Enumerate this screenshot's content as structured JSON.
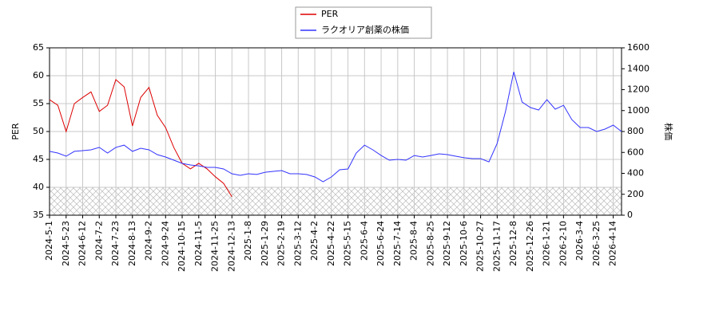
{
  "chart_data": {
    "type": "line",
    "categories": [
      "2024-5-1",
      null,
      "2024-5-23",
      null,
      "2024-6-12",
      null,
      "2024-7-2",
      null,
      "2024-7-23",
      null,
      "2024-8-13",
      null,
      "2024-9-2",
      null,
      "2024-9-24",
      null,
      "2024-10-15",
      null,
      "2024-11-5",
      null,
      "2024-11-25",
      null,
      "2024-12-13",
      null,
      "2025-1-8",
      null,
      "2025-1-29",
      null,
      "2025-2-19",
      null,
      "2025-3-12",
      null,
      "2025-4-2",
      null,
      "2025-4-22",
      null,
      "2025-5-15",
      null,
      "2025-6-4",
      null,
      "2025-6-24",
      null,
      "2025-7-14",
      null,
      "2025-8-4",
      null,
      "2025-8-25",
      null,
      "2025-9-12",
      null,
      "2025-10-6",
      null,
      "2025-10-27",
      null,
      "2025-11-17",
      null,
      "2025-12-8",
      null,
      "2025-12-26",
      null,
      "2026-1-21",
      null,
      "2026-2-10",
      null,
      "2026-3-4",
      null,
      "2026-3-25",
      null,
      "2026-4-14",
      null
    ],
    "series": [
      {
        "name": "PER",
        "color": "#dd0000",
        "axis": "y",
        "values": [
          55.7,
          54.7,
          50.0,
          55.0,
          56.1,
          57.1,
          53.6,
          54.7,
          59.3,
          58.0,
          51.0,
          56.1,
          57.9,
          52.9,
          50.7,
          47.1,
          44.3,
          43.3,
          44.3,
          43.3,
          41.9,
          40.7,
          38.3,
          null,
          null,
          null,
          null,
          null,
          null,
          null,
          null,
          null,
          null,
          null,
          null,
          null,
          null,
          null,
          null,
          null,
          null,
          null,
          null,
          null,
          null,
          null,
          null,
          null,
          null,
          null,
          null,
          null,
          null,
          null,
          null,
          null,
          null,
          null,
          null,
          null,
          null,
          null,
          null,
          null,
          null,
          null,
          null,
          null,
          null,
          null
        ]
      },
      {
        "name": "ラクオリア創薬の株価",
        "color": "#3333ff",
        "axis": "y2",
        "values": [
          610,
          594,
          564,
          610,
          617,
          625,
          648,
          594,
          648,
          670,
          610,
          640,
          625,
          579,
          556,
          526,
          495,
          480,
          472,
          457,
          457,
          442,
          396,
          381,
          396,
          389,
          411,
          419,
          427,
          396,
          396,
          389,
          366,
          320,
          366,
          434,
          442,
          594,
          670,
          625,
          571,
          526,
          533,
          526,
          571,
          556,
          571,
          587,
          579,
          564,
          549,
          541,
          541,
          510,
          686,
          990,
          1371,
          1082,
          1029,
          1006,
          1105,
          1013,
          1051,
          914,
          838,
          838,
          800,
          823,
          861,
          800
        ]
      }
    ],
    "ylabel": "PER",
    "y2label": "株価",
    "ylim": [
      35,
      65
    ],
    "yticks": [
      35,
      40,
      45,
      50,
      55,
      60,
      65
    ],
    "y2lim": [
      0,
      1600
    ],
    "y2ticks": [
      0,
      200,
      400,
      600,
      800,
      1000,
      1200,
      1400,
      1600
    ],
    "shade_below": 40,
    "grid": true,
    "legend": "top"
  }
}
